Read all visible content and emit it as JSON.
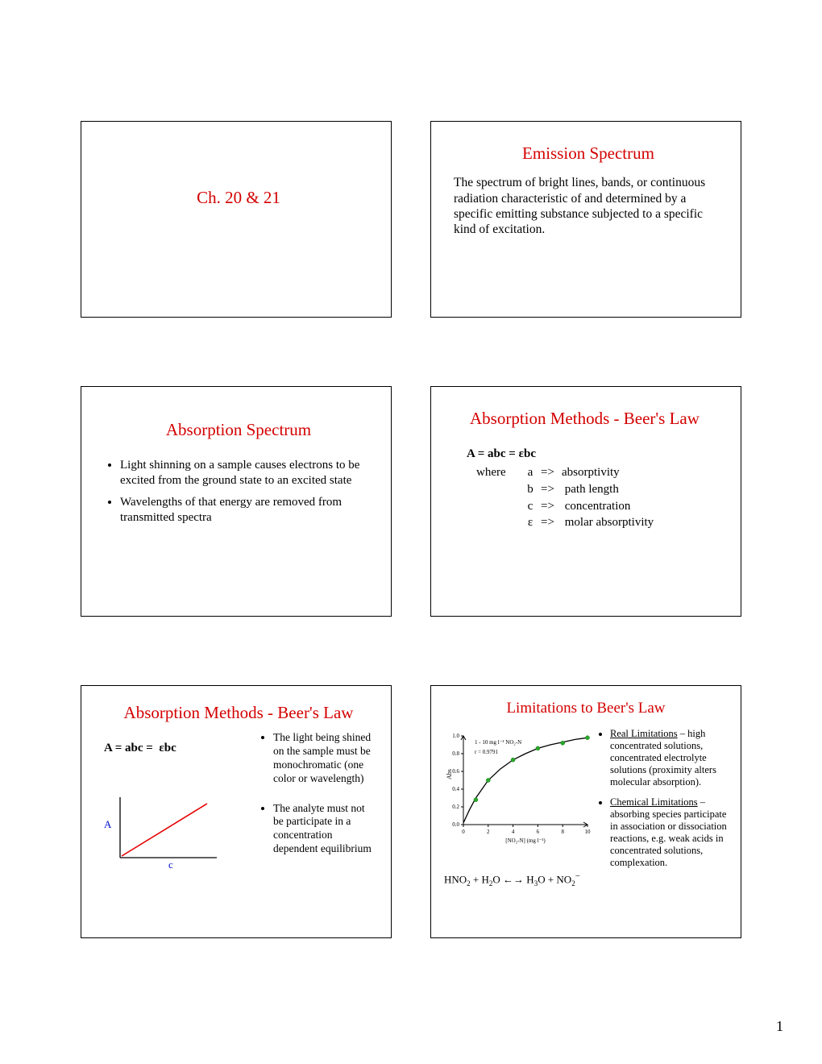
{
  "page_number": "1",
  "colors": {
    "title": "#d40000",
    "linegraph_line": "#e60000",
    "linegraph_axis_label": "#0011cc",
    "curve_line": "#000000",
    "curve_points": "#2aa92a",
    "background": "#ffffff",
    "border": "#000000"
  },
  "slides": {
    "s1": {
      "title": "Ch. 20 & 21"
    },
    "s2": {
      "title": "Emission Spectrum",
      "body": "The spectrum of bright lines, bands, or continuous radiation characteristic of and determined by a specific emitting substance subjected to a specific kind of excitation."
    },
    "s3": {
      "title": "Absorption Spectrum",
      "bullets": [
        "Light shinning on a sample causes electrons to be excited from the ground state to an excited state",
        "Wavelengths of that energy are removed from transmitted spectra"
      ]
    },
    "s4": {
      "title": "Absorption Methods - Beer's Law",
      "formula": "A = abc = εbc",
      "where_label": "where",
      "defs": [
        {
          "sym": "a",
          "text": "absorptivity"
        },
        {
          "sym": "b",
          "text": "path length"
        },
        {
          "sym": "c",
          "text": "concentration"
        },
        {
          "sym": "ε",
          "text": "molar absorptivity"
        }
      ]
    },
    "s5": {
      "title": "Absorption Methods - Beer's Law",
      "formula": "A = abc =  εbc",
      "bullets": [
        "The light being shined on the sample must be monochromatic (one color or wavelength)",
        "The analyte must not be participate in a concentration dependent equilibrium"
      ],
      "graph": {
        "axis_A": "A",
        "axis_c": "c",
        "line_color": "#e60000",
        "axis_color": "#000000",
        "label_color": "#0011cc"
      }
    },
    "s6": {
      "title": "Limitations to Beer's Law",
      "bullets": [
        {
          "label": "Real Limitations",
          "text": " – high concentrated solutions, concentrated electrolyte solutions (proximity alters molecular absorption)."
        },
        {
          "label": "Chemical Limitations",
          "text": " – absorbing species participate in association or dissociation reactions, e.g. weak acids in concentrated solutions, complexation."
        }
      ],
      "equation_parts": {
        "p1": "HNO",
        "p1sub": "2",
        "p2": " + H",
        "p2sub": "2",
        "p3": "O ←→ H",
        "p3sub": "3",
        "p4": "O + NO",
        "p4sub": "2",
        "p5sup": "−"
      },
      "graph": {
        "series_label": "1 - 10 mg l⁻¹ NO₂-N",
        "r_label": "r = 0.9791",
        "ylabel": "Abs",
        "xlabel": "[NO₂-N] (mg l⁻¹)",
        "xlim": [
          0,
          10
        ],
        "ylim": [
          0,
          1.0
        ],
        "xticks": [
          0,
          2,
          4,
          6,
          8,
          10
        ],
        "yticks": [
          "0.0",
          "0.2",
          "0.4",
          "0.6",
          "0.8",
          "1.0"
        ],
        "points": [
          [
            1,
            0.28
          ],
          [
            2,
            0.5
          ],
          [
            4,
            0.73
          ],
          [
            6,
            0.86
          ],
          [
            8,
            0.92
          ],
          [
            10,
            0.98
          ]
        ],
        "curve": [
          [
            0,
            0.02
          ],
          [
            0.5,
            0.17
          ],
          [
            1,
            0.3
          ],
          [
            2,
            0.5
          ],
          [
            3,
            0.63
          ],
          [
            4,
            0.73
          ],
          [
            5,
            0.8
          ],
          [
            6,
            0.86
          ],
          [
            7,
            0.9
          ],
          [
            8,
            0.93
          ],
          [
            9,
            0.96
          ],
          [
            10,
            0.98
          ]
        ],
        "axis_color": "#000000",
        "tick_font_size": 7,
        "label_font_size": 7,
        "point_color": "#2aa92a",
        "line_color": "#000000"
      }
    }
  }
}
